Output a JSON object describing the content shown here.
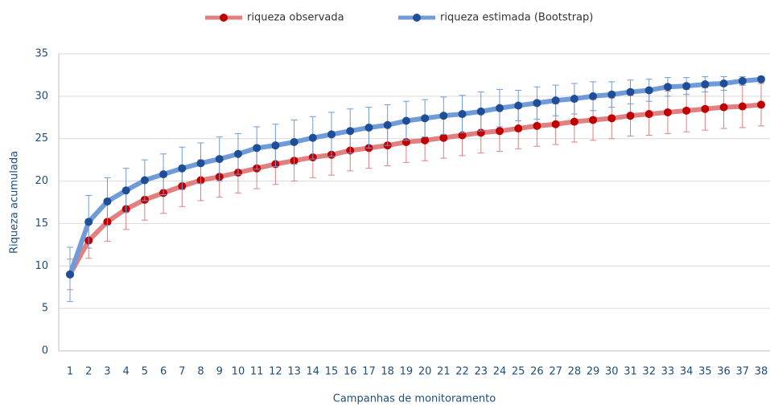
{
  "chart_data": {
    "type": "line",
    "x_label": "Campanhas de monitoramento",
    "y_label": "Riqueza acumulada",
    "categories": [
      1,
      2,
      3,
      4,
      5,
      6,
      7,
      8,
      9,
      10,
      11,
      12,
      13,
      14,
      15,
      16,
      17,
      18,
      19,
      20,
      21,
      22,
      23,
      24,
      25,
      26,
      27,
      28,
      29,
      30,
      31,
      32,
      33,
      34,
      35,
      36,
      37,
      38
    ],
    "series": [
      {
        "name": "riqueza observada",
        "color": "#c00000",
        "values": [
          9,
          13,
          15.2,
          16.7,
          17.8,
          18.6,
          19.4,
          20.1,
          20.5,
          21,
          21.5,
          22,
          22.4,
          22.8,
          23.1,
          23.6,
          23.9,
          24.2,
          24.6,
          24.8,
          25.1,
          25.4,
          25.7,
          25.9,
          26.2,
          26.5,
          26.7,
          27,
          27.2,
          27.4,
          27.7,
          27.9,
          28.1,
          28.3,
          28.5,
          28.7,
          28.8,
          29
        ],
        "errors": [
          1.8,
          2.1,
          2.3,
          2.4,
          2.4,
          2.4,
          2.4,
          2.4,
          2.4,
          2.4,
          2.4,
          2.4,
          2.4,
          2.4,
          2.4,
          2.4,
          2.4,
          2.4,
          2.4,
          2.4,
          2.4,
          2.4,
          2.4,
          2.4,
          2.4,
          2.4,
          2.4,
          2.4,
          2.4,
          2.4,
          2.4,
          2.5,
          2.5,
          2.5,
          2.5,
          2.5,
          2.5,
          2.5
        ]
      },
      {
        "name": "riqueza estimada (Bootstrap)",
        "color": "#1f4e99",
        "values": [
          9,
          15.2,
          17.6,
          18.9,
          20.1,
          20.8,
          21.5,
          22.1,
          22.6,
          23.2,
          23.9,
          24.2,
          24.6,
          25.1,
          25.5,
          25.9,
          26.3,
          26.6,
          27.1,
          27.4,
          27.7,
          27.9,
          28.2,
          28.6,
          28.9,
          29.2,
          29.5,
          29.7,
          30,
          30.2,
          30.5,
          30.7,
          31.1,
          31.2,
          31.4,
          31.5,
          31.8,
          32
        ],
        "errors": [
          3.2,
          3.1,
          2.8,
          2.6,
          2.4,
          2.4,
          2.5,
          2.4,
          2.6,
          2.4,
          2.5,
          2.5,
          2.6,
          2.5,
          2.6,
          2.6,
          2.4,
          2.4,
          2.3,
          2.2,
          2.2,
          2.2,
          2.3,
          2.2,
          1.8,
          1.9,
          1.8,
          1.8,
          1.7,
          1.5,
          1.4,
          1.3,
          1.1,
          1,
          0.9,
          0.8,
          0.5,
          0.3
        ]
      }
    ],
    "ylim": [
      0,
      35
    ],
    "yticks": [
      0,
      5,
      10,
      15,
      20,
      25,
      30,
      35
    ],
    "grid": true,
    "legend": "top"
  }
}
